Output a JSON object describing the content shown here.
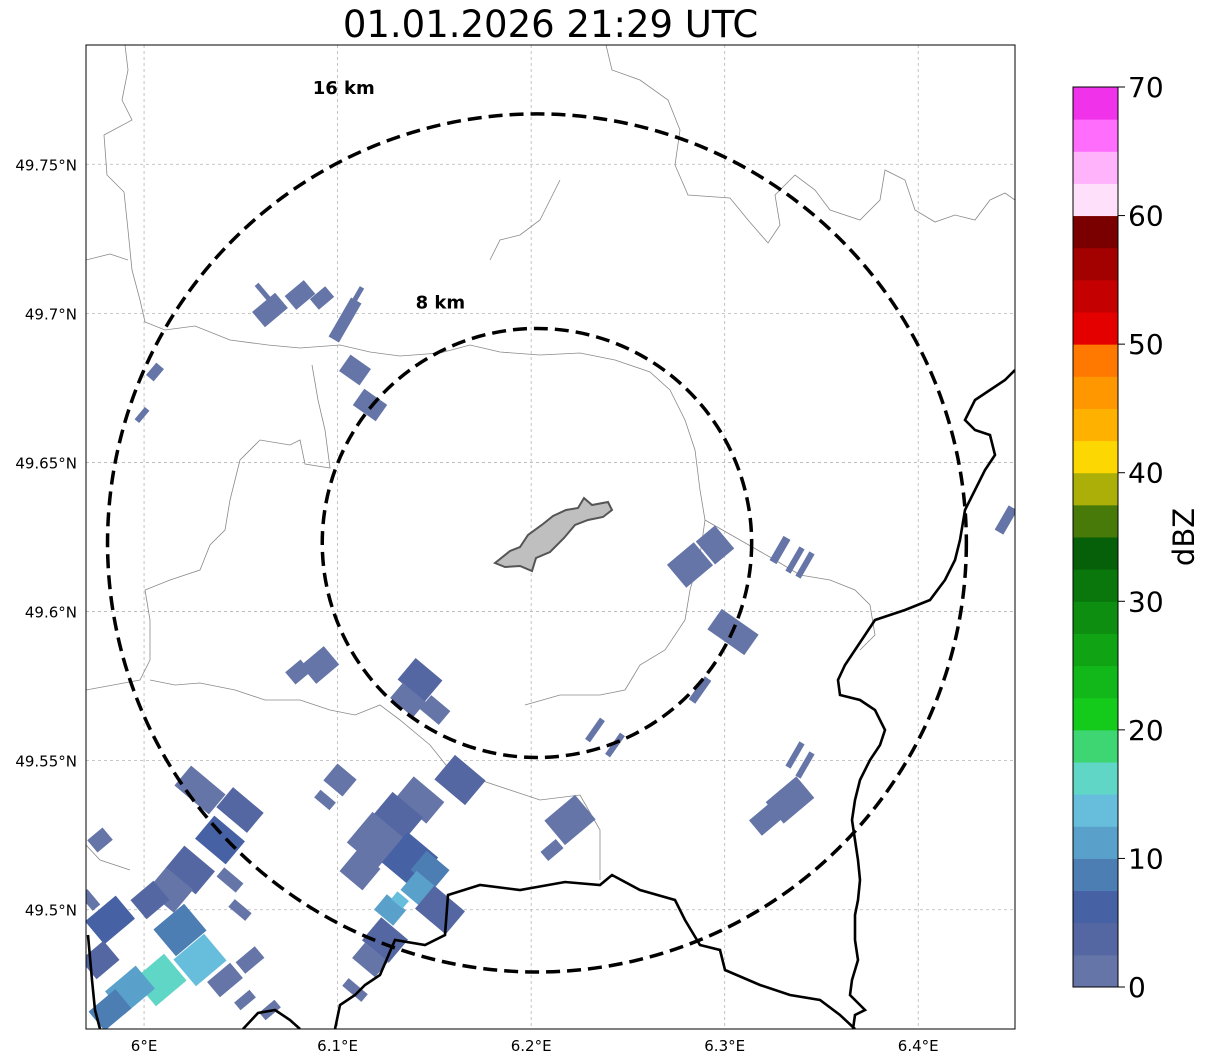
{
  "title": "01.01.2026 21:29 UTC",
  "map": {
    "lon_ticks": [
      "6°E",
      "6.1°E",
      "6.2°E",
      "6.3°E",
      "6.4°E"
    ],
    "lat_ticks": [
      "49.75°N",
      "49.7°N",
      "49.65°N",
      "49.6°N",
      "49.55°N",
      "49.5°N"
    ],
    "lon_values": [
      6.0,
      6.1,
      6.2,
      6.3,
      6.4
    ],
    "lat_values": [
      49.75,
      49.7,
      49.65,
      49.6,
      49.55,
      49.5
    ],
    "extent": {
      "lon_min": 5.97,
      "lon_max": 6.45,
      "lat_min": 49.46,
      "lat_max": 49.79
    },
    "radar_center": {
      "lon": 6.203,
      "lat": 49.623
    },
    "range_rings": [
      {
        "label": "8 km",
        "km": 8
      },
      {
        "label": "16 km",
        "km": 16
      }
    ]
  },
  "colorbar": {
    "label": "dBZ",
    "min": 0,
    "max": 70,
    "step": 5,
    "tick_labels": [
      "0",
      "10",
      "20",
      "30",
      "40",
      "50",
      "60",
      "70"
    ],
    "colors": [
      "#6575a8",
      "#5567a3",
      "#4761a5",
      "#4c7db3",
      "#59a0cb",
      "#66bedc",
      "#60d6c6",
      "#3dd672",
      "#14cb1c",
      "#12b819",
      "#10a314",
      "#0d8e11",
      "#0a770d",
      "#065f09",
      "#477a08",
      "#acaf07",
      "#fdd702",
      "#ffb100",
      "#ff9700",
      "#ff7800",
      "#e50000",
      "#c40000",
      "#a30000",
      "#7a0000",
      "#ffe0fb",
      "#ffb3fb",
      "#ff6dfd",
      "#f032eb"
    ]
  }
}
